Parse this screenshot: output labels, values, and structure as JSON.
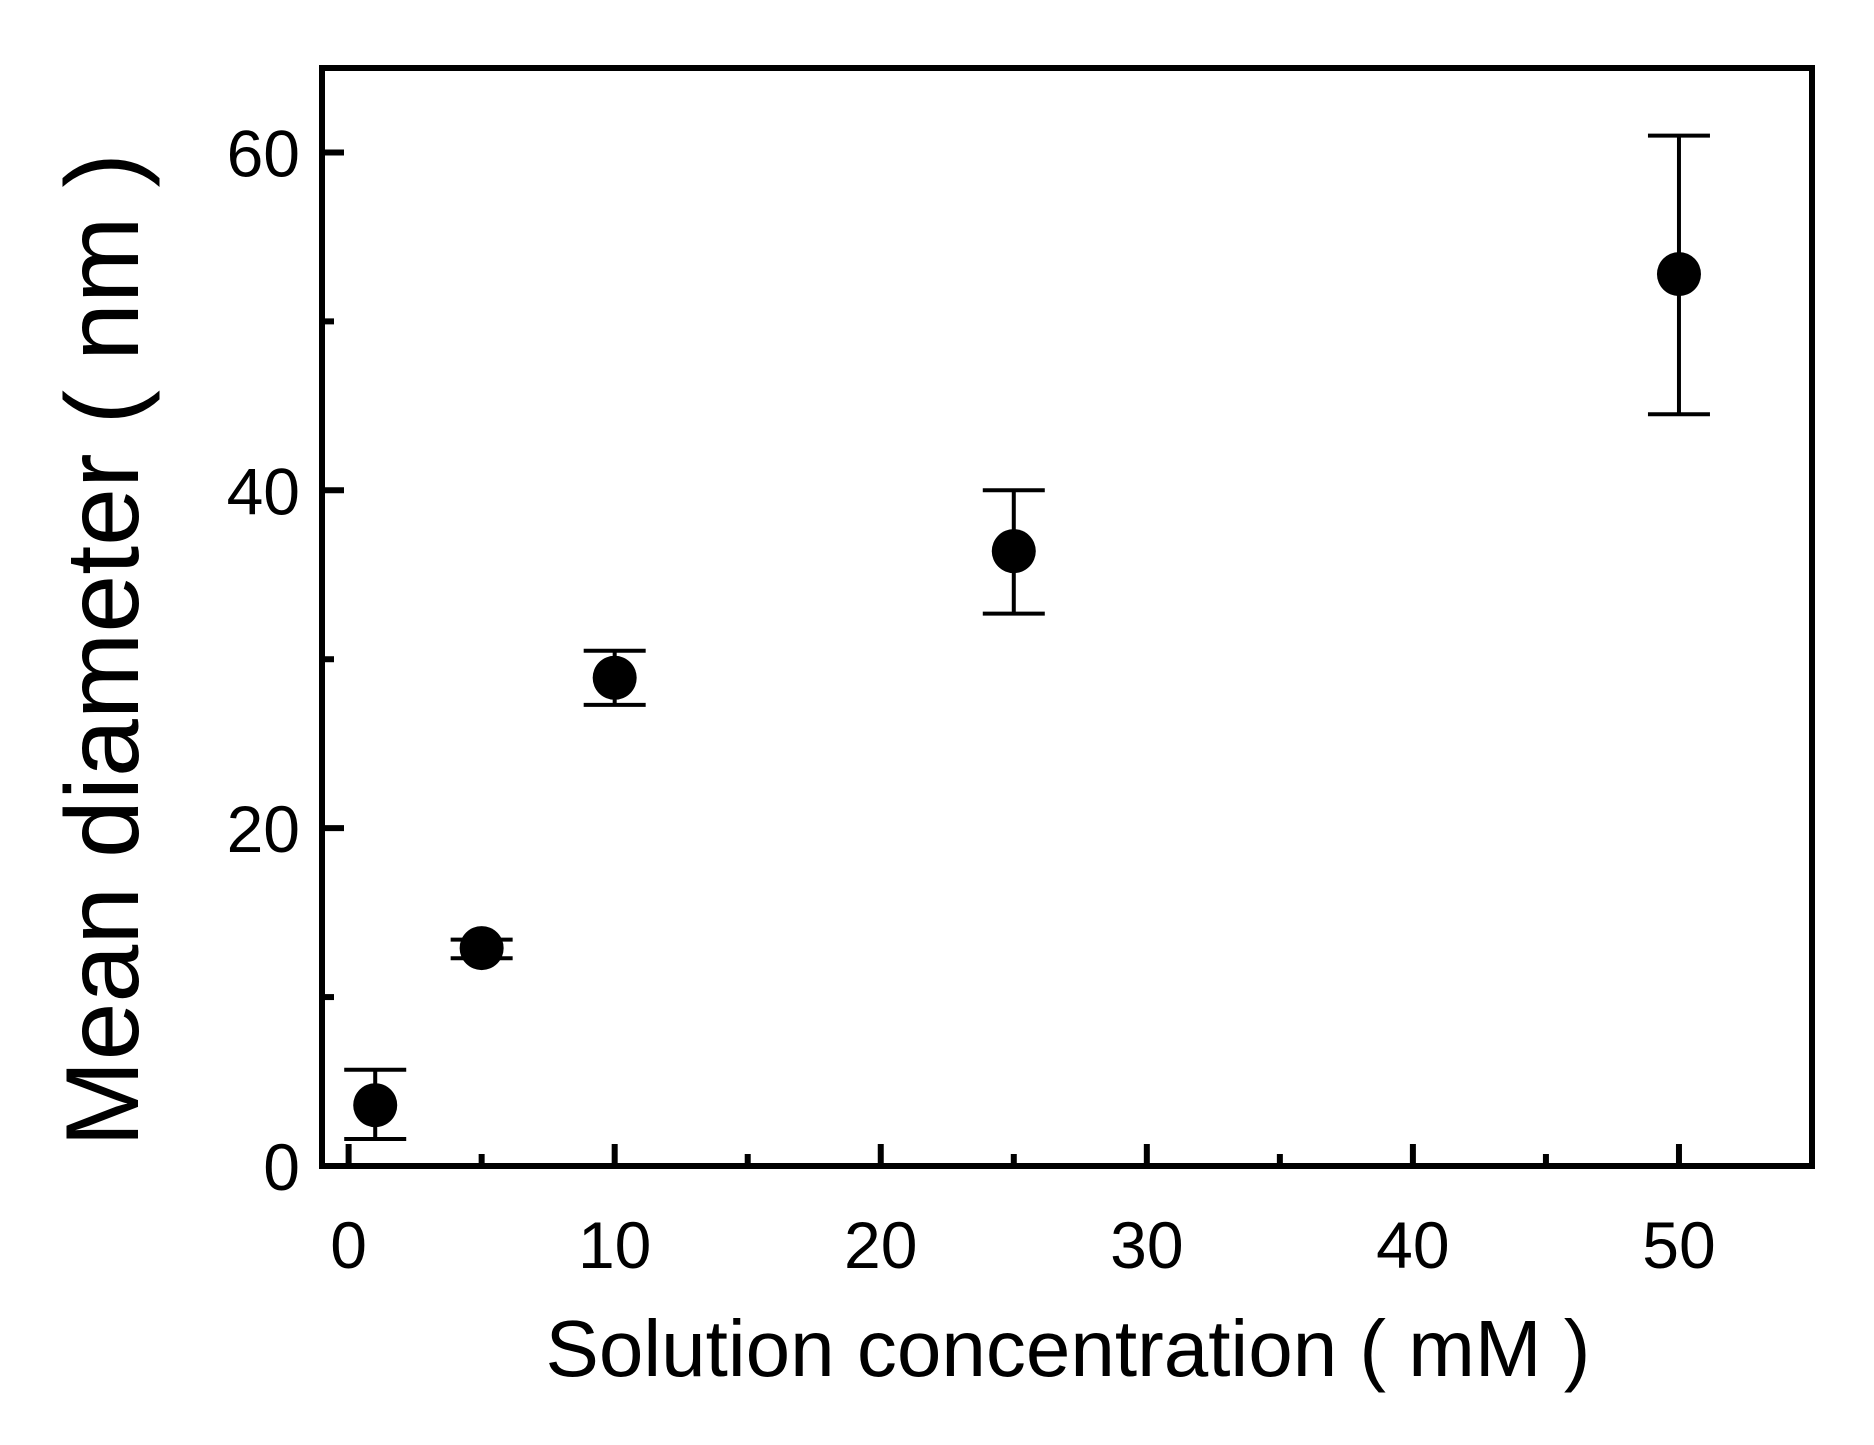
{
  "chart_data": {
    "type": "scatter",
    "xlabel": "Solution concentration ( mM )",
    "ylabel": "Mean diameter ( nm )",
    "xlim": [
      -1,
      55
    ],
    "ylim": [
      0,
      65
    ],
    "x_ticks": [
      0,
      10,
      20,
      30,
      40,
      50
    ],
    "x_minor_ticks": [
      5,
      15,
      25,
      35,
      45
    ],
    "y_ticks": [
      0,
      20,
      40,
      60
    ],
    "y_minor_ticks": [
      10,
      30,
      50
    ],
    "x_tick_labels": [
      "0",
      "10",
      "20",
      "30",
      "40",
      "50"
    ],
    "y_tick_labels": [
      "0",
      "20",
      "40",
      "60"
    ],
    "grid": false,
    "marker_color": "#000000",
    "series": [
      {
        "x": [
          1,
          5,
          10,
          25,
          50
        ],
        "y": [
          3.6,
          12.9,
          28.9,
          36.4,
          52.8
        ],
        "err_low": [
          2.0,
          0.6,
          1.6,
          3.7,
          8.3
        ],
        "err_high": [
          2.1,
          0.5,
          1.6,
          3.6,
          8.2
        ]
      }
    ]
  }
}
